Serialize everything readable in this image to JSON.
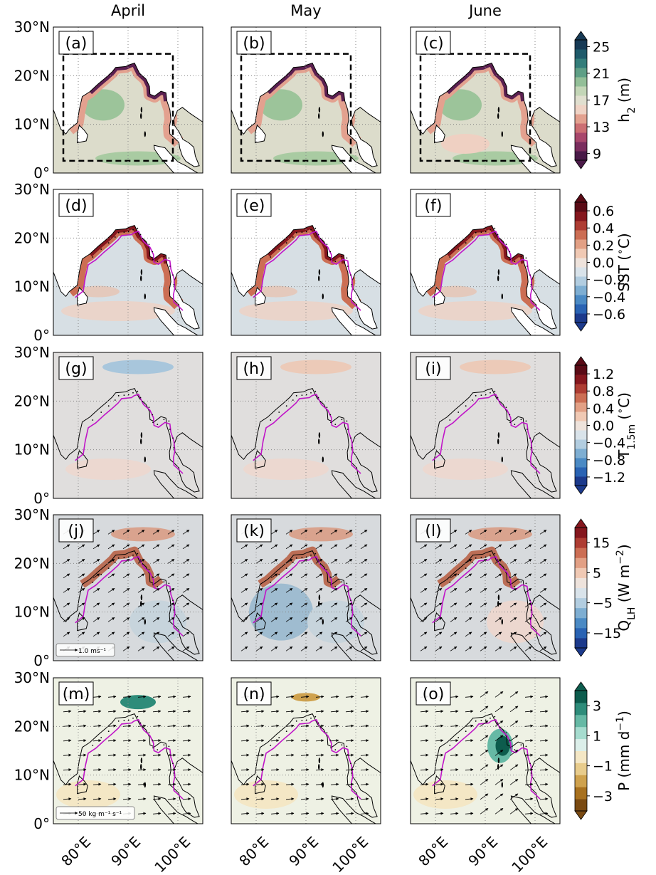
{
  "columns": [
    "April",
    "May",
    "June"
  ],
  "lat_ticks": [
    "30°N",
    "20°N",
    "10°N",
    "0°"
  ],
  "lon_ticks": [
    "80°E",
    "90°E",
    "100°E"
  ],
  "panels": [
    [
      "(a)",
      "(b)",
      "(c)"
    ],
    [
      "(d)",
      "(e)",
      "(f)"
    ],
    [
      "(g)",
      "(h)",
      "(i)"
    ],
    [
      "(j)",
      "(k)",
      "(l)"
    ],
    [
      "(m)",
      "(n)",
      "(o)"
    ]
  ],
  "vector_keys": {
    "row4": "1.0 ms⁻¹",
    "row5": "50 kg m⁻¹ s⁻¹"
  },
  "colorbars": [
    {
      "label": [
        {
          "text": "h"
        },
        {
          "sub": "2"
        },
        {
          "text": " (m)"
        }
      ],
      "lim": [
        8,
        26
      ],
      "ticks": [
        9,
        13,
        17,
        21,
        25
      ],
      "colors": [
        "#4a1a48",
        "#7a2d5e",
        "#a8476c",
        "#cc6f73",
        "#e3a18f",
        "#efd3c5",
        "#e0dfcf",
        "#c3d6b7",
        "#93bf98",
        "#5f9f86",
        "#347d7a",
        "#1f5a6a",
        "#173a55"
      ]
    },
    {
      "label": [
        {
          "text": "SST ("
        },
        {
          "sup": "∘"
        },
        {
          "text": "C)"
        }
      ],
      "lim": [
        -0.7,
        0.7
      ],
      "ticks": [
        {
          "value": -0.6,
          "label": "−0.6"
        },
        {
          "value": -0.4,
          "label": "−0.4"
        },
        {
          "value": -0.2,
          "label": "−0.2"
        },
        {
          "value": 0,
          "label": "0.0"
        },
        0.2,
        0.4,
        0.6
      ],
      "colors": [
        "#1c3a8c",
        "#2a63b3",
        "#4b8ac4",
        "#7eaed2",
        "#b2cde0",
        "#d9e3ea",
        "#eee3dc",
        "#f0c9b4",
        "#e2a085",
        "#cc6e54",
        "#ae3d33",
        "#85171e",
        "#5a0b16"
      ]
    },
    {
      "label": [
        {
          "text": "T"
        },
        {
          "sub": "1.5m"
        },
        {
          "text": " ("
        },
        {
          "sup": "∘"
        },
        {
          "text": "C)"
        }
      ],
      "lim": [
        -1.4,
        1.4
      ],
      "ticks": [
        {
          "value": -1.2,
          "label": "−1.2"
        },
        {
          "value": -0.8,
          "label": "−0.8"
        },
        {
          "value": -0.4,
          "label": "−0.4"
        },
        {
          "value": 0,
          "label": "0.0"
        },
        0.4,
        0.8,
        1.2
      ],
      "colors": [
        "#1c3a8c",
        "#2a63b3",
        "#4b8ac4",
        "#7eaed2",
        "#b2cde0",
        "#d9e3ea",
        "#eee3dc",
        "#f0c9b4",
        "#e2a085",
        "#cc6e54",
        "#ae3d33",
        "#85171e",
        "#5a0b16"
      ]
    },
    {
      "label": [
        {
          "text": "Q"
        },
        {
          "sub": "LH"
        },
        {
          "text": " (W m"
        },
        {
          "sup": "−2"
        },
        {
          "text": ")"
        }
      ],
      "lim": [
        -20,
        20
      ],
      "ticks": [
        {
          "value": -15,
          "label": "−15"
        },
        {
          "value": -5,
          "label": "−5"
        },
        5,
        15
      ],
      "colors": [
        "#1c3a8c",
        "#2a63b3",
        "#4b8ac4",
        "#7eaed2",
        "#b2cde0",
        "#d9e3ea",
        "#eee3dc",
        "#f0c9b4",
        "#e2a085",
        "#cc6e54",
        "#ae3d33",
        "#85171e"
      ]
    },
    {
      "label": [
        {
          "text": "P (mm d"
        },
        {
          "sup": "−1"
        },
        {
          "text": ")"
        }
      ],
      "lim": [
        -4,
        4
      ],
      "ticks": [
        {
          "value": -3,
          "label": "−3"
        },
        {
          "value": -1,
          "label": "−1"
        },
        1,
        3
      ],
      "colors": [
        "#7a4a12",
        "#a8711f",
        "#cfa24e",
        "#e8cc8c",
        "#f4e7c5",
        "#dcefea",
        "#a6dccf",
        "#66b9a5",
        "#2e8c7a",
        "#0d5c4d"
      ]
    }
  ]
}
